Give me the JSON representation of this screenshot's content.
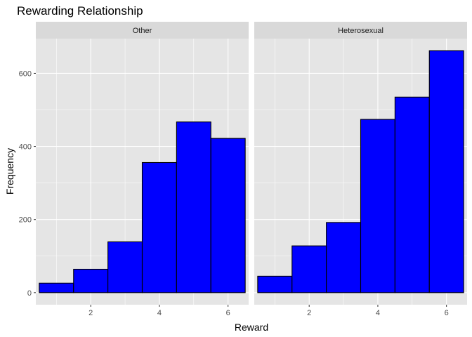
{
  "chart_data": {
    "type": "bar",
    "title": "Rewarding Relationship",
    "xlabel": "Reward",
    "ylabel": "Frequency",
    "xlim": [
      0.4,
      6.6
    ],
    "ylim": [
      -33,
      695
    ],
    "x_ticks": [
      2,
      4,
      6
    ],
    "y_ticks": [
      0,
      200,
      400,
      600
    ],
    "grid": true,
    "colors": {
      "bar_fill": "#0000ff",
      "bar_stroke": "#000000",
      "panel_bg": "#e5e5e5",
      "strip_bg": "#d9d9d9",
      "grid": "#ffffff"
    },
    "bins": [
      1,
      2,
      3,
      4,
      5,
      6
    ],
    "bin_width": 1,
    "panels": [
      {
        "label": "Other",
        "values": [
          26,
          64,
          139,
          356,
          467,
          422
        ]
      },
      {
        "label": "Heterosexual",
        "values": [
          45,
          128,
          192,
          474,
          535,
          662
        ]
      }
    ]
  }
}
